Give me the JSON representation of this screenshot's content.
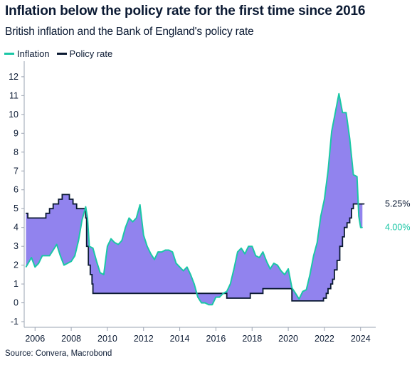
{
  "title": "Inflation below the policy rate for the first time since 2016",
  "subtitle": "British inflation and the Bank of England's policy rate",
  "source": "Source: Convera, Macrobond",
  "colors": {
    "inflation": "#1bc7a6",
    "policy_rate": "#0b1a33",
    "gap_fill": "#9183ee"
  },
  "chart_data": {
    "type": "line",
    "title": "Inflation below the policy rate for the first time since 2016",
    "subtitle": "British inflation and the Bank of England's policy rate",
    "xlabel": "",
    "ylabel": "",
    "xlim": [
      2005.4,
      2024.6
    ],
    "ylim": [
      -1.3,
      12.6
    ],
    "x_ticks": [
      "2006",
      "2008",
      "2010",
      "2012",
      "2014",
      "2016",
      "2018",
      "2020",
      "2022",
      "2024"
    ],
    "y_ticks": [
      "-1",
      "0",
      "1",
      "2",
      "3",
      "4",
      "5",
      "6",
      "7",
      "8",
      "9",
      "10",
      "11",
      "12"
    ],
    "grid": false,
    "legend_position": "top-left",
    "fill_between_series": true,
    "end_labels": [
      "5.25%",
      "4.00%"
    ],
    "series": [
      {
        "name": "Inflation",
        "points": [
          [
            2005.5,
            1.9
          ],
          [
            2005.8,
            2.4
          ],
          [
            2006.0,
            1.9
          ],
          [
            2006.2,
            2.1
          ],
          [
            2006.4,
            2.5
          ],
          [
            2006.6,
            2.5
          ],
          [
            2006.8,
            2.5
          ],
          [
            2007.0,
            2.8
          ],
          [
            2007.2,
            3.1
          ],
          [
            2007.4,
            2.5
          ],
          [
            2007.6,
            2.0
          ],
          [
            2007.8,
            2.1
          ],
          [
            2008.0,
            2.2
          ],
          [
            2008.2,
            2.5
          ],
          [
            2008.4,
            3.3
          ],
          [
            2008.6,
            4.4
          ],
          [
            2008.8,
            5.1
          ],
          [
            2008.9,
            4.5
          ],
          [
            2009.0,
            3.0
          ],
          [
            2009.2,
            2.9
          ],
          [
            2009.4,
            2.2
          ],
          [
            2009.6,
            1.6
          ],
          [
            2009.8,
            1.5
          ],
          [
            2010.0,
            3.0
          ],
          [
            2010.2,
            3.4
          ],
          [
            2010.4,
            3.2
          ],
          [
            2010.6,
            3.1
          ],
          [
            2010.8,
            3.3
          ],
          [
            2011.0,
            4.0
          ],
          [
            2011.2,
            4.5
          ],
          [
            2011.4,
            4.3
          ],
          [
            2011.6,
            4.5
          ],
          [
            2011.8,
            5.2
          ],
          [
            2012.0,
            3.6
          ],
          [
            2012.2,
            3.0
          ],
          [
            2012.4,
            2.6
          ],
          [
            2012.6,
            2.3
          ],
          [
            2012.8,
            2.7
          ],
          [
            2013.0,
            2.7
          ],
          [
            2013.2,
            2.8
          ],
          [
            2013.4,
            2.8
          ],
          [
            2013.6,
            2.7
          ],
          [
            2013.8,
            2.1
          ],
          [
            2014.0,
            1.9
          ],
          [
            2014.2,
            1.7
          ],
          [
            2014.4,
            1.9
          ],
          [
            2014.6,
            1.5
          ],
          [
            2014.8,
            1.0
          ],
          [
            2015.0,
            0.3
          ],
          [
            2015.2,
            0.0
          ],
          [
            2015.4,
            0.0
          ],
          [
            2015.6,
            -0.1
          ],
          [
            2015.8,
            -0.1
          ],
          [
            2016.0,
            0.3
          ],
          [
            2016.2,
            0.3
          ],
          [
            2016.4,
            0.5
          ],
          [
            2016.6,
            0.6
          ],
          [
            2016.8,
            1.0
          ],
          [
            2017.0,
            1.8
          ],
          [
            2017.2,
            2.7
          ],
          [
            2017.4,
            2.9
          ],
          [
            2017.6,
            2.6
          ],
          [
            2017.8,
            3.0
          ],
          [
            2018.0,
            3.0
          ],
          [
            2018.2,
            2.5
          ],
          [
            2018.4,
            2.4
          ],
          [
            2018.6,
            2.7
          ],
          [
            2018.8,
            2.2
          ],
          [
            2019.0,
            1.8
          ],
          [
            2019.2,
            2.1
          ],
          [
            2019.4,
            2.0
          ],
          [
            2019.6,
            1.7
          ],
          [
            2019.8,
            1.5
          ],
          [
            2020.0,
            1.8
          ],
          [
            2020.2,
            0.8
          ],
          [
            2020.4,
            0.5
          ],
          [
            2020.6,
            0.2
          ],
          [
            2020.8,
            0.6
          ],
          [
            2021.0,
            0.7
          ],
          [
            2021.2,
            1.5
          ],
          [
            2021.4,
            2.5
          ],
          [
            2021.6,
            3.2
          ],
          [
            2021.8,
            4.6
          ],
          [
            2022.0,
            5.5
          ],
          [
            2022.2,
            7.0
          ],
          [
            2022.4,
            9.1
          ],
          [
            2022.6,
            10.1
          ],
          [
            2022.8,
            11.1
          ],
          [
            2023.0,
            10.1
          ],
          [
            2023.2,
            10.1
          ],
          [
            2023.4,
            8.7
          ],
          [
            2023.6,
            6.8
          ],
          [
            2023.8,
            6.7
          ],
          [
            2023.9,
            4.6
          ],
          [
            2024.0,
            4.0
          ],
          [
            2024.1,
            4.0
          ]
        ]
      },
      {
        "name": "Policy rate",
        "points": [
          [
            2005.5,
            4.75
          ],
          [
            2005.6,
            4.5
          ],
          [
            2006.5,
            4.5
          ],
          [
            2006.6,
            4.75
          ],
          [
            2006.8,
            5.0
          ],
          [
            2007.0,
            5.25
          ],
          [
            2007.3,
            5.5
          ],
          [
            2007.5,
            5.75
          ],
          [
            2007.9,
            5.5
          ],
          [
            2008.1,
            5.25
          ],
          [
            2008.3,
            5.0
          ],
          [
            2008.8,
            4.5
          ],
          [
            2008.85,
            3.0
          ],
          [
            2008.95,
            2.0
          ],
          [
            2009.05,
            1.5
          ],
          [
            2009.15,
            1.0
          ],
          [
            2009.2,
            0.5
          ],
          [
            2016.6,
            0.25
          ],
          [
            2017.9,
            0.5
          ],
          [
            2018.6,
            0.75
          ],
          [
            2020.2,
            0.1
          ],
          [
            2021.95,
            0.25
          ],
          [
            2022.1,
            0.5
          ],
          [
            2022.2,
            0.75
          ],
          [
            2022.35,
            1.0
          ],
          [
            2022.45,
            1.25
          ],
          [
            2022.55,
            1.75
          ],
          [
            2022.7,
            2.25
          ],
          [
            2022.85,
            3.0
          ],
          [
            2023.0,
            3.5
          ],
          [
            2023.1,
            4.0
          ],
          [
            2023.25,
            4.25
          ],
          [
            2023.4,
            4.5
          ],
          [
            2023.5,
            5.0
          ],
          [
            2023.6,
            5.25
          ],
          [
            2024.2,
            5.25
          ]
        ]
      }
    ]
  }
}
